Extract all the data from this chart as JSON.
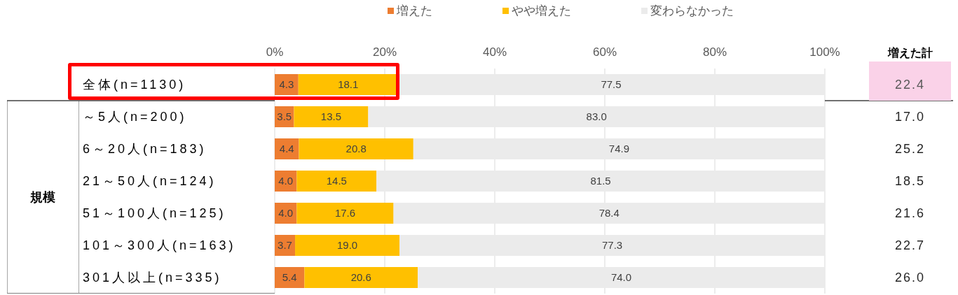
{
  "chart_data": [
    {
      "type": "bar",
      "orientation": "horizontal",
      "stacked": true,
      "categories": [
        "全体(n=1130)",
        "～5人(n=200)",
        "6～20人(n=183)",
        "21～50人(n=124)",
        "51～100人(n=125)",
        "101～300人(n=163)",
        "301人以上(n=335)"
      ],
      "series": [
        {
          "name": "増えた",
          "color": "#ed7d31",
          "values": [
            4.3,
            3.5,
            4.4,
            4.0,
            4.0,
            3.7,
            5.4
          ],
          "value_labels": [
            "4.3",
            "3.5",
            "4.4",
            "4.0",
            "4.0",
            "3.7",
            "5.4"
          ]
        },
        {
          "name": "やや増えた",
          "color": "#ffc000",
          "values": [
            18.1,
            13.5,
            20.8,
            14.5,
            17.6,
            19.0,
            20.6
          ],
          "value_labels": [
            "18.1",
            "13.5",
            "20.8",
            "14.5",
            "17.6",
            "19.0",
            "20.6"
          ]
        },
        {
          "name": "変わらなかった",
          "color": "#ebebeb",
          "values": [
            77.5,
            83.0,
            74.9,
            81.5,
            78.4,
            77.3,
            74.0
          ],
          "value_labels": [
            "77.5",
            "83.0",
            "74.9",
            "81.5",
            "78.4",
            "77.3",
            "74.0"
          ]
        }
      ],
      "xlim": [
        0,
        100
      ],
      "xticks": [
        {
          "value": 0,
          "label": "0%"
        },
        {
          "value": 20,
          "label": "20%"
        },
        {
          "value": 40,
          "label": "40%"
        },
        {
          "value": 60,
          "label": "60%"
        },
        {
          "value": 80,
          "label": "80%"
        },
        {
          "value": 100,
          "label": "100%"
        }
      ],
      "grid": "x",
      "legend": "top",
      "annotations": [
        "規模"
      ]
    },
    {
      "type": "other",
      "title": "増えた計",
      "annotations": [
        "22.4",
        "17.0",
        "25.2",
        "18.5",
        "21.6",
        "22.7",
        "26.0"
      ]
    }
  ]
}
